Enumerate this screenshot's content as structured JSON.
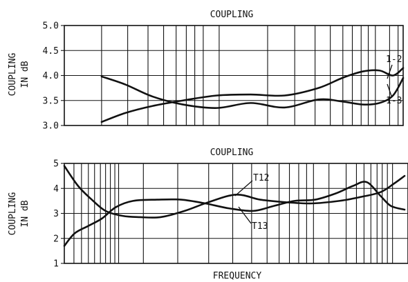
{
  "chart_data": [
    {
      "type": "line",
      "title": "COUPLING",
      "ylabel": [
        "COUPLING",
        "IN dB"
      ],
      "xlabel": "",
      "ylim": [
        3.0,
        5.0
      ],
      "yticks": [
        "3.0",
        "3.5",
        "4.0",
        "4.5",
        "5.0"
      ],
      "x_scale": "log",
      "x_range": [
        0,
        1
      ],
      "grid": true,
      "series": [
        {
          "name": "1-2",
          "x": [
            0.11,
            0.18,
            0.26,
            0.35,
            0.45,
            0.55,
            0.65,
            0.75,
            0.82,
            0.88,
            0.93,
            0.97,
            1.0
          ],
          "values": [
            3.07,
            3.25,
            3.39,
            3.5,
            3.6,
            3.62,
            3.6,
            3.75,
            3.95,
            4.08,
            4.1,
            4.0,
            4.15
          ]
        },
        {
          "name": "1-3",
          "x": [
            0.11,
            0.18,
            0.26,
            0.35,
            0.45,
            0.55,
            0.65,
            0.75,
            0.82,
            0.88,
            0.93,
            0.97,
            1.0
          ],
          "values": [
            3.98,
            3.82,
            3.58,
            3.42,
            3.35,
            3.45,
            3.36,
            3.52,
            3.48,
            3.42,
            3.45,
            3.6,
            3.95
          ]
        }
      ]
    },
    {
      "type": "line",
      "title": "COUPLING",
      "ylabel": [
        "COUPLING",
        "IN dB"
      ],
      "xlabel": "FREQUENCY",
      "ylim": [
        1,
        5
      ],
      "yticks": [
        "1",
        "2",
        "3",
        "4",
        "5"
      ],
      "x_scale": "log",
      "x_range": [
        0,
        1
      ],
      "grid": true,
      "series": [
        {
          "name": "T12",
          "x": [
            0.0,
            0.03,
            0.07,
            0.11,
            0.15,
            0.2,
            0.27,
            0.34,
            0.41,
            0.48,
            0.55,
            0.61,
            0.67,
            0.73,
            0.79,
            0.84,
            0.88,
            0.92,
            0.95,
            0.99
          ],
          "values": [
            1.7,
            2.2,
            2.5,
            2.8,
            3.25,
            3.5,
            3.55,
            3.55,
            3.4,
            3.2,
            3.1,
            3.3,
            3.5,
            3.55,
            3.8,
            4.1,
            4.25,
            3.7,
            3.3,
            3.15
          ]
        },
        {
          "name": "T13",
          "x": [
            0.0,
            0.04,
            0.08,
            0.12,
            0.17,
            0.22,
            0.28,
            0.35,
            0.42,
            0.5,
            0.57,
            0.64,
            0.72,
            0.8,
            0.86,
            0.92,
            0.96,
            0.99
          ],
          "values": [
            4.9,
            4.1,
            3.55,
            3.1,
            2.9,
            2.85,
            2.85,
            3.1,
            3.45,
            3.75,
            3.55,
            3.45,
            3.4,
            3.5,
            3.65,
            3.85,
            4.2,
            4.5
          ]
        }
      ]
    }
  ],
  "colors": {
    "ink": "#111111",
    "background": "#ffffff"
  }
}
